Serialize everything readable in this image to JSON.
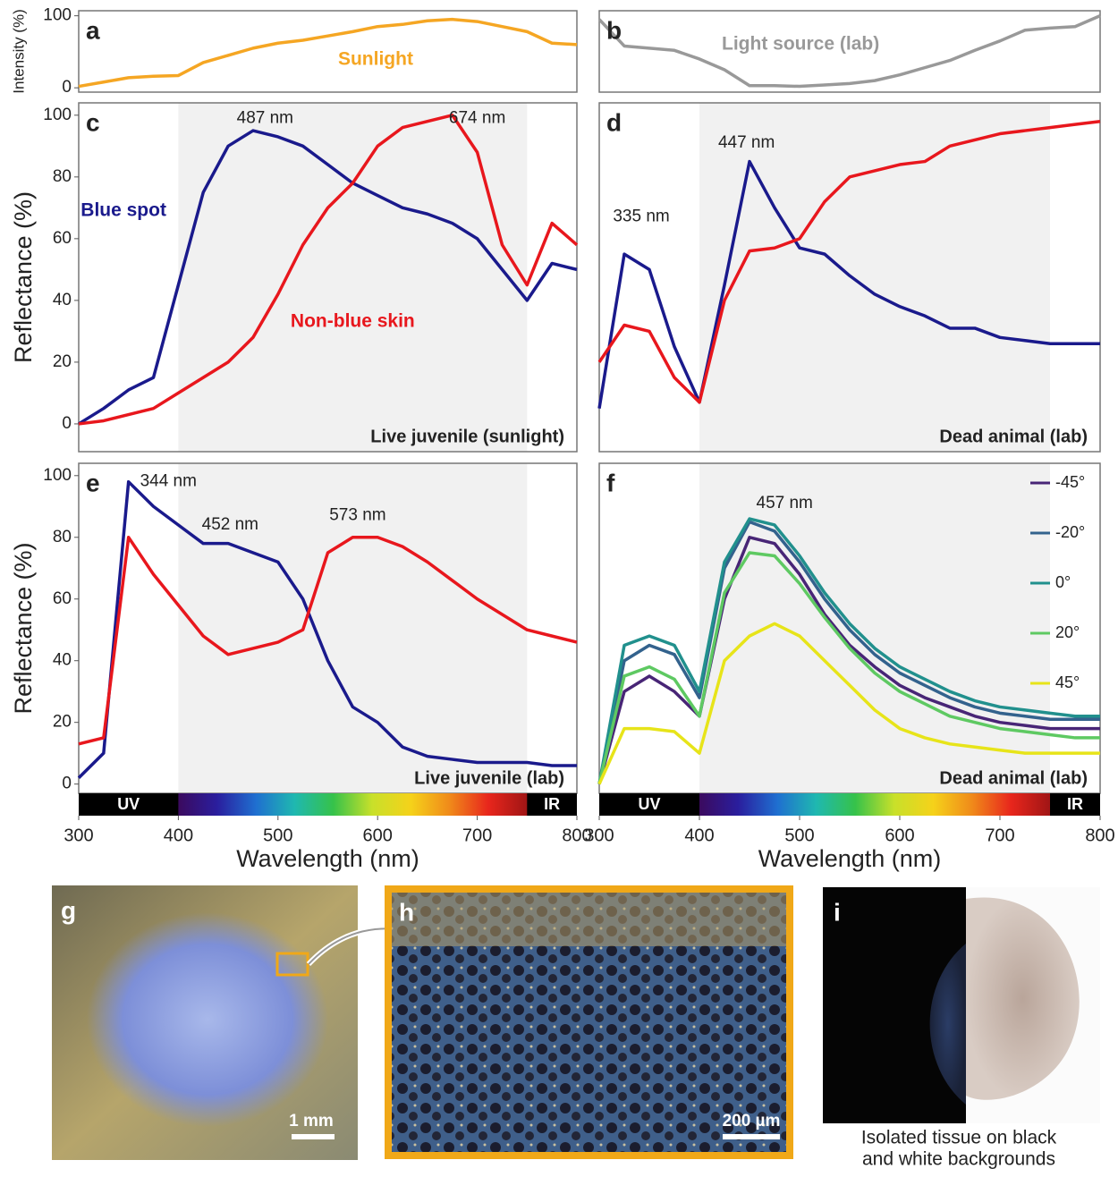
{
  "chart_data": [
    {
      "type": "line",
      "label": "a",
      "y_label": "Intensity (%)",
      "ylim": [
        -6,
        107
      ],
      "yticks": [
        0,
        100
      ],
      "xlim": [
        300,
        800
      ],
      "x": [
        300,
        325,
        350,
        375,
        400,
        425,
        450,
        475,
        500,
        525,
        550,
        575,
        600,
        625,
        650,
        675,
        700,
        725,
        750,
        775,
        800
      ],
      "series": [
        {
          "name": "Sunlight",
          "color": "#f5a623",
          "label_at": [
            598,
            39
          ],
          "values": [
            2,
            8,
            14,
            16,
            17,
            35,
            45,
            55,
            62,
            66,
            72,
            78,
            85,
            88,
            93,
            95,
            92,
            85,
            78,
            62,
            60
          ]
        }
      ]
    },
    {
      "type": "line",
      "label": "b",
      "ylim": [
        -6,
        107
      ],
      "xlim": [
        300,
        800
      ],
      "x": [
        300,
        325,
        350,
        375,
        400,
        425,
        450,
        475,
        500,
        525,
        550,
        575,
        600,
        625,
        650,
        675,
        700,
        725,
        750,
        775,
        800
      ],
      "series": [
        {
          "name": "Light source (lab)",
          "color": "#999999",
          "label_at": [
            501,
            60
          ],
          "values": [
            95,
            58,
            55,
            52,
            40,
            25,
            3,
            3,
            2,
            4,
            6,
            10,
            18,
            28,
            38,
            52,
            65,
            80,
            83,
            85,
            100
          ]
        }
      ]
    },
    {
      "type": "line",
      "label": "c",
      "y_label": "Reflectance (%)",
      "caption": "Live juvenile (sunlight)",
      "ylim": [
        -9,
        104
      ],
      "yticks": [
        0,
        20,
        40,
        60,
        80,
        100
      ],
      "xlim": [
        300,
        800
      ],
      "visible": [
        400,
        750
      ],
      "x": [
        300,
        325,
        350,
        375,
        400,
        425,
        450,
        475,
        500,
        525,
        550,
        575,
        600,
        625,
        650,
        675,
        700,
        725,
        750,
        775,
        800
      ],
      "annotations": [
        {
          "text": "487 nm",
          "x": 487,
          "y": 99
        },
        {
          "text": "674 nm",
          "x": 700,
          "y": 99
        }
      ],
      "series": [
        {
          "name": "Blue spot",
          "color": "#1a1a8c",
          "label_at": [
            345,
            69
          ],
          "values": [
            0,
            5,
            11,
            15,
            45,
            75,
            90,
            95,
            93,
            90,
            84,
            78,
            74,
            70,
            68,
            65,
            60,
            50,
            40,
            52,
            50
          ]
        },
        {
          "name": "Non-blue skin",
          "color": "#e8171d",
          "label_at": [
            575,
            33
          ],
          "values": [
            0,
            1,
            3,
            5,
            10,
            15,
            20,
            28,
            42,
            58,
            70,
            78,
            90,
            96,
            98,
            100,
            88,
            58,
            45,
            65,
            58
          ]
        }
      ]
    },
    {
      "type": "line",
      "label": "d",
      "caption": "Dead animal (lab)",
      "ylim": [
        -9,
        104
      ],
      "xlim": [
        300,
        800
      ],
      "visible": [
        400,
        750
      ],
      "x": [
        300,
        325,
        350,
        375,
        400,
        425,
        450,
        475,
        500,
        525,
        550,
        575,
        600,
        625,
        650,
        675,
        700,
        725,
        750,
        775,
        800
      ],
      "annotations": [
        {
          "text": "447 nm",
          "x": 447,
          "y": 91
        },
        {
          "text": "335 nm",
          "x": 342,
          "y": 67
        }
      ],
      "series": [
        {
          "name": "Blue spot",
          "color": "#1a1a8c",
          "values": [
            5,
            55,
            50,
            25,
            7,
            45,
            85,
            70,
            57,
            55,
            48,
            42,
            38,
            35,
            31,
            31,
            28,
            27,
            26,
            26,
            26
          ]
        },
        {
          "name": "Non-blue skin",
          "color": "#e8171d",
          "values": [
            20,
            32,
            30,
            15,
            7,
            40,
            56,
            57,
            60,
            72,
            80,
            82,
            84,
            85,
            90,
            92,
            94,
            95,
            96,
            97,
            98
          ]
        }
      ]
    },
    {
      "type": "line",
      "y_label": "Reflectance (%)",
      "label": "e",
      "x_label": "Wavelength (nm)",
      "caption": "Live juvenile (lab)",
      "ylim": [
        -3,
        104
      ],
      "yticks": [
        0,
        20,
        40,
        60,
        80,
        100
      ],
      "xlim": [
        300,
        800
      ],
      "xticks": [
        300,
        400,
        500,
        600,
        700,
        800
      ],
      "visible": [
        400,
        750
      ],
      "spectrum": [
        "UV",
        "IR"
      ],
      "x": [
        300,
        325,
        350,
        375,
        400,
        425,
        450,
        475,
        500,
        525,
        550,
        575,
        600,
        625,
        650,
        675,
        700,
        725,
        750,
        775,
        800
      ],
      "annotations": [
        {
          "text": "344 nm",
          "x": 390,
          "y": 98
        },
        {
          "text": "452 nm",
          "x": 452,
          "y": 84
        },
        {
          "text": "573 nm",
          "x": 580,
          "y": 87
        }
      ],
      "series": [
        {
          "name": "Blue spot",
          "color": "#1a1a8c",
          "values": [
            2,
            10,
            98,
            90,
            84,
            78,
            78,
            75,
            72,
            60,
            40,
            25,
            20,
            12,
            9,
            8,
            7,
            7,
            7,
            6,
            6
          ]
        },
        {
          "name": "Non-blue skin",
          "color": "#e8171d",
          "values": [
            13,
            15,
            80,
            68,
            58,
            48,
            42,
            44,
            46,
            50,
            75,
            80,
            80,
            77,
            72,
            66,
            60,
            55,
            50,
            48,
            46
          ]
        }
      ]
    },
    {
      "type": "line",
      "label": "f",
      "x_label": "Wavelength (nm)",
      "caption": "Dead animal (lab)",
      "ylim": [
        -3,
        104
      ],
      "xlim": [
        300,
        800
      ],
      "xticks": [
        300,
        400,
        500,
        600,
        700,
        800
      ],
      "visible": [
        400,
        750
      ],
      "spectrum": [
        "UV",
        "IR"
      ],
      "legend": "upper right",
      "x": [
        300,
        325,
        350,
        375,
        400,
        425,
        450,
        475,
        500,
        525,
        550,
        575,
        600,
        625,
        650,
        675,
        700,
        725,
        750,
        775,
        800
      ],
      "annotations": [
        {
          "text": "457 nm",
          "x": 485,
          "y": 91
        }
      ],
      "series": [
        {
          "name": "-45°",
          "color": "#482576",
          "values": [
            0,
            30,
            35,
            30,
            22,
            60,
            80,
            78,
            68,
            55,
            45,
            38,
            32,
            28,
            25,
            22,
            20,
            19,
            18,
            18,
            18
          ]
        },
        {
          "name": "-20°",
          "color": "#33628d",
          "values": [
            0,
            40,
            45,
            42,
            28,
            70,
            85,
            82,
            72,
            60,
            50,
            42,
            36,
            32,
            28,
            25,
            23,
            22,
            21,
            21,
            21
          ]
        },
        {
          "name": "0°",
          "color": "#21908d",
          "values": [
            0,
            45,
            48,
            45,
            30,
            72,
            86,
            84,
            74,
            62,
            52,
            44,
            38,
            34,
            30,
            27,
            25,
            24,
            23,
            22,
            22
          ]
        },
        {
          "name": "20°",
          "color": "#5ec962",
          "values": [
            0,
            35,
            38,
            34,
            22,
            62,
            75,
            74,
            65,
            54,
            44,
            36,
            30,
            26,
            22,
            20,
            18,
            17,
            16,
            15,
            15
          ]
        },
        {
          "name": "45°",
          "color": "#e7e419",
          "values": [
            0,
            18,
            18,
            17,
            10,
            40,
            48,
            52,
            48,
            40,
            32,
            24,
            18,
            15,
            13,
            12,
            11,
            10,
            10,
            10,
            10
          ]
        }
      ]
    }
  ],
  "photos": {
    "g": {
      "label": "g",
      "scale": "1 mm"
    },
    "h": {
      "label": "h",
      "scale": "200 µm"
    },
    "i": {
      "label": "i",
      "caption": [
        "Isolated tissue on black",
        "and white backgrounds"
      ]
    }
  }
}
